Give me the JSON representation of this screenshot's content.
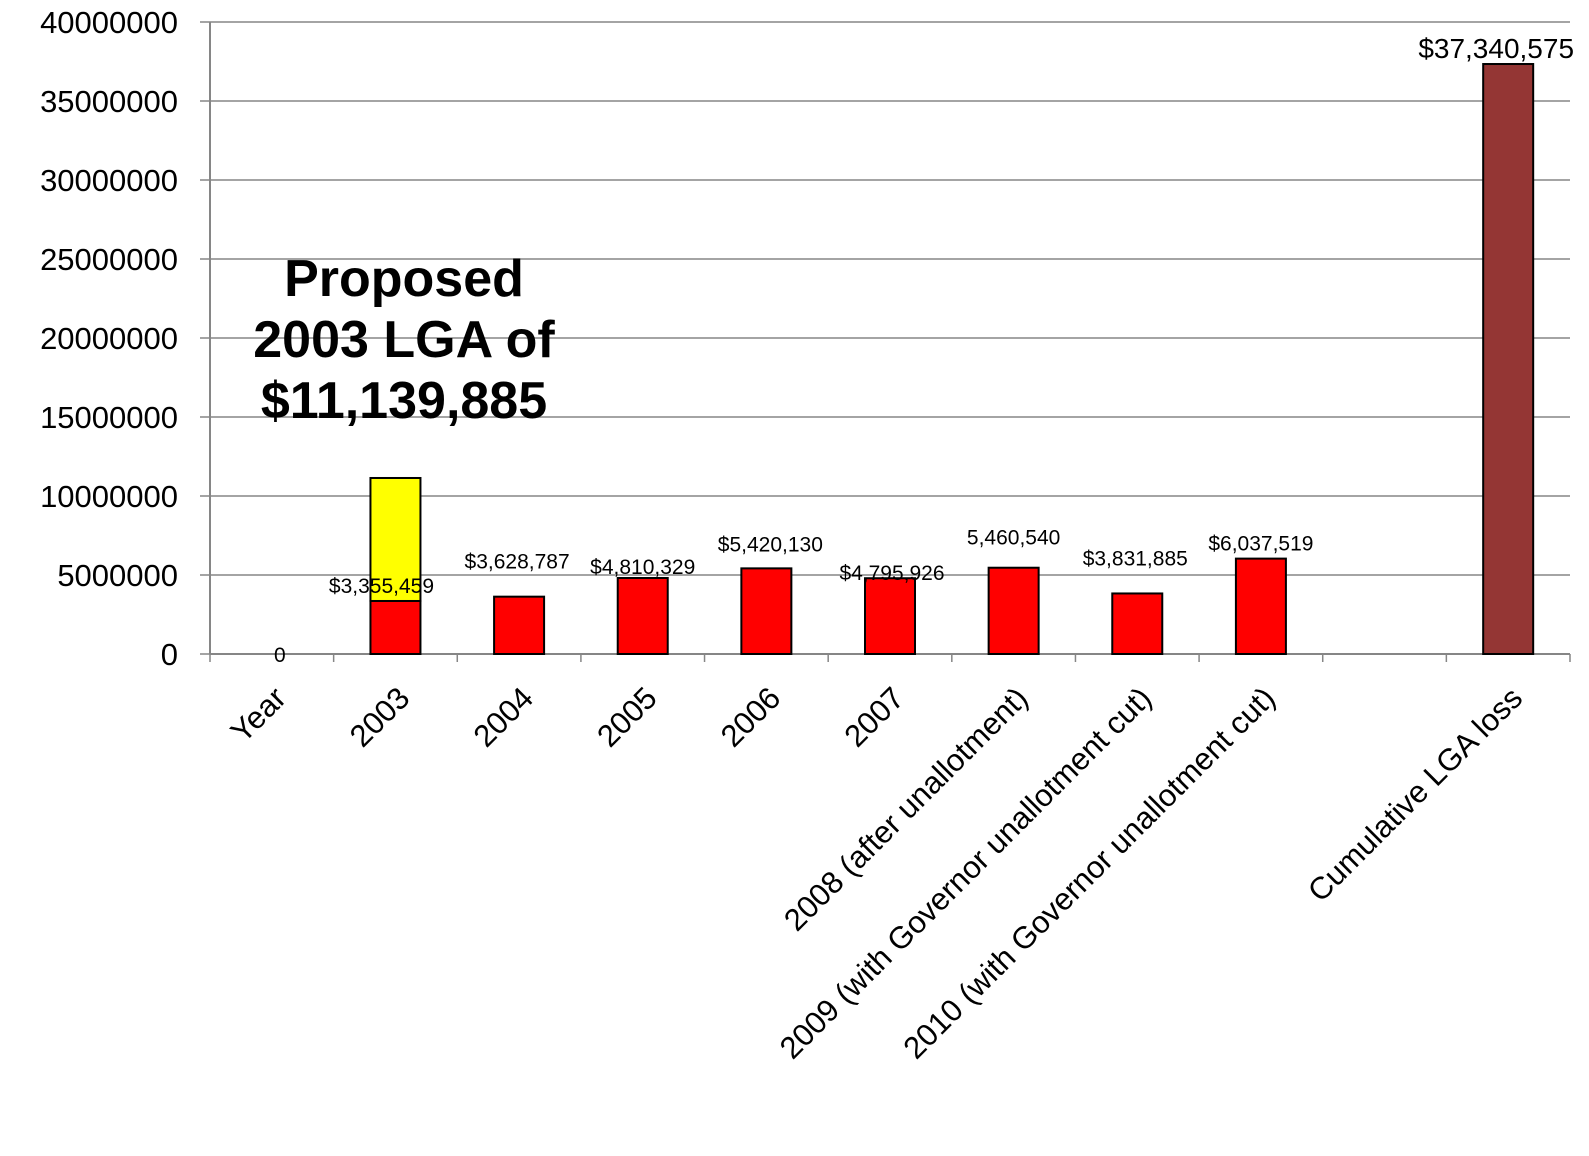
{
  "chart_data": {
    "type": "bar",
    "ylim": [
      0,
      40000000
    ],
    "yticks": [
      "0",
      "5000000",
      "10000000",
      "15000000",
      "20000000",
      "25000000",
      "30000000",
      "35000000",
      "40000000"
    ],
    "grid": true,
    "legend": "none",
    "categories": [
      "Year",
      "2003",
      "2004",
      "2005",
      "2006",
      "2007",
      "2008 (after unallotment)",
      "2009 (with Governor unallotment cut)",
      "2010 (with Governor unallotment cut)",
      "",
      "Cumulative LGA loss"
    ],
    "series": [
      {
        "color": "#ff0000",
        "values": [
          0,
          3355459,
          3628787,
          4810329,
          5420130,
          4795926,
          5460540,
          3831885,
          6037519,
          null,
          null
        ],
        "labels": [
          "0",
          "$3,355,459",
          "$3,628,787",
          "$4,810,329",
          "$5,420,130",
          "$4,795,926",
          "5,460,540",
          "$3,831,885",
          "$6,037,519",
          "",
          ""
        ]
      },
      {
        "color": "#ffff00",
        "stacked_on": 0,
        "values": [
          null,
          7784426,
          null,
          null,
          null,
          null,
          null,
          null,
          null,
          null,
          null
        ],
        "labels": [
          "",
          "",
          "",
          "",
          "",
          "",
          "",
          "",
          "",
          "",
          ""
        ]
      },
      {
        "color": "#943634",
        "values": [
          null,
          null,
          null,
          null,
          null,
          null,
          null,
          null,
          null,
          null,
          37340575
        ],
        "labels": [
          "",
          "",
          "",
          "",
          "",
          "",
          "",
          "",
          "",
          "",
          "$37,340,575"
        ]
      }
    ],
    "annotation": [
      "Proposed",
      "2003 LGA of",
      "$11,139,885"
    ]
  }
}
